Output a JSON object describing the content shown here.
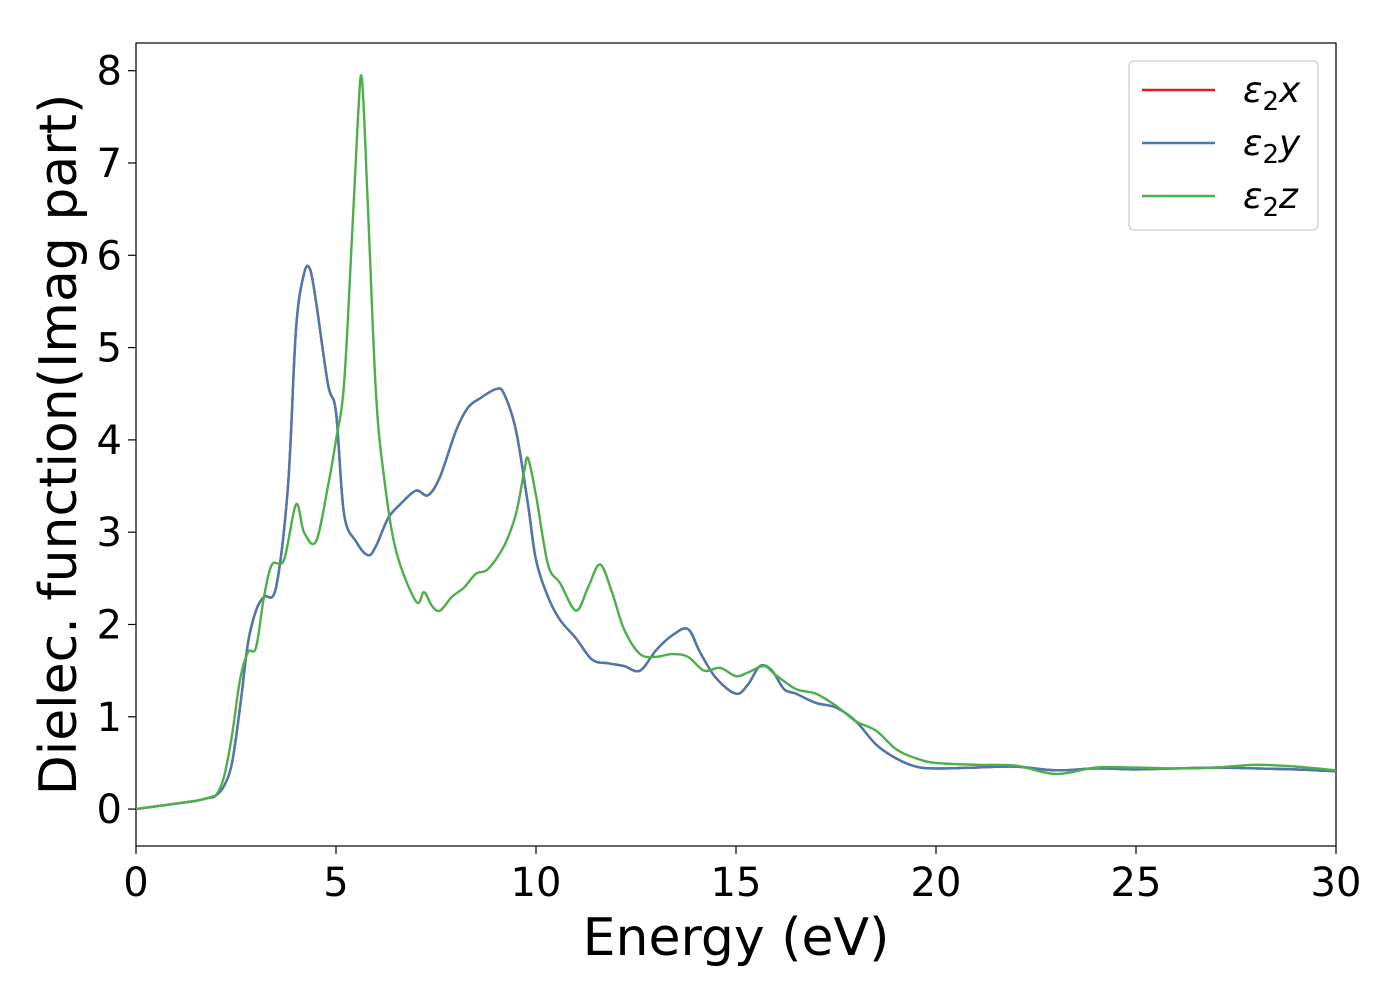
{
  "chart_data": {
    "type": "line",
    "title": "",
    "xlabel": "Energy (eV)",
    "ylabel": "Dielec. function(Imag part)",
    "xlim": [
      0,
      30
    ],
    "ylim": [
      -0.4,
      8.3
    ],
    "xticks": [
      0,
      5,
      10,
      15,
      20,
      25,
      30
    ],
    "yticks": [
      0,
      1,
      2,
      3,
      4,
      5,
      6,
      7,
      8
    ],
    "grid": false,
    "legend_position": "top-right",
    "series": [
      {
        "name": "ε2x",
        "legend_base": "ε",
        "legend_sub": "2",
        "legend_suffix": "x",
        "color": "#e41a1c",
        "x": [
          0,
          0.5,
          1,
          1.5,
          1.8,
          2,
          2.2,
          2.4,
          2.6,
          2.8,
          3,
          3.2,
          3.5,
          3.8,
          4,
          4.2,
          4.35,
          4.5,
          4.8,
          5,
          5.2,
          5.5,
          5.8,
          6,
          6.3,
          6.6,
          7,
          7.3,
          7.6,
          8,
          8.3,
          8.6,
          9,
          9.2,
          9.5,
          9.8,
          10,
          10.3,
          10.6,
          11,
          11.4,
          11.8,
          12.2,
          12.6,
          13,
          13.4,
          13.8,
          14.1,
          14.5,
          15,
          15.3,
          15.6,
          15.9,
          16.2,
          16.5,
          17,
          17.5,
          18,
          18.5,
          19,
          19.5,
          20,
          21,
          22,
          23,
          24,
          25,
          26,
          27,
          28,
          29,
          30
        ],
        "values": [
          0,
          0.03,
          0.06,
          0.09,
          0.12,
          0.15,
          0.25,
          0.5,
          1.1,
          1.8,
          2.15,
          2.3,
          2.4,
          3.5,
          5.2,
          5.8,
          5.85,
          5.5,
          4.6,
          4.3,
          3.2,
          2.9,
          2.75,
          2.85,
          3.15,
          3.3,
          3.45,
          3.4,
          3.6,
          4.1,
          4.35,
          4.45,
          4.55,
          4.5,
          4.1,
          3.3,
          2.7,
          2.3,
          2.05,
          1.85,
          1.62,
          1.58,
          1.55,
          1.5,
          1.72,
          1.88,
          1.95,
          1.7,
          1.42,
          1.25,
          1.35,
          1.55,
          1.5,
          1.3,
          1.25,
          1.15,
          1.1,
          0.95,
          0.7,
          0.55,
          0.46,
          0.44,
          0.45,
          0.46,
          0.42,
          0.44,
          0.43,
          0.44,
          0.45,
          0.44,
          0.43,
          0.41
        ]
      },
      {
        "name": "ε2y",
        "legend_base": "ε",
        "legend_sub": "2",
        "legend_suffix": "y",
        "color": "#4a78b0",
        "x": [
          0,
          0.5,
          1,
          1.5,
          1.8,
          2,
          2.2,
          2.4,
          2.6,
          2.8,
          3,
          3.2,
          3.5,
          3.8,
          4,
          4.2,
          4.35,
          4.5,
          4.8,
          5,
          5.2,
          5.5,
          5.8,
          6,
          6.3,
          6.6,
          7,
          7.3,
          7.6,
          8,
          8.3,
          8.6,
          9,
          9.2,
          9.5,
          9.8,
          10,
          10.3,
          10.6,
          11,
          11.4,
          11.8,
          12.2,
          12.6,
          13,
          13.4,
          13.8,
          14.1,
          14.5,
          15,
          15.3,
          15.6,
          15.9,
          16.2,
          16.5,
          17,
          17.5,
          18,
          18.5,
          19,
          19.5,
          20,
          21,
          22,
          23,
          24,
          25,
          26,
          27,
          28,
          29,
          30
        ],
        "values": [
          0,
          0.03,
          0.06,
          0.09,
          0.12,
          0.15,
          0.25,
          0.5,
          1.1,
          1.8,
          2.15,
          2.3,
          2.4,
          3.5,
          5.2,
          5.8,
          5.85,
          5.5,
          4.6,
          4.3,
          3.2,
          2.9,
          2.75,
          2.85,
          3.15,
          3.3,
          3.45,
          3.4,
          3.6,
          4.1,
          4.35,
          4.45,
          4.55,
          4.5,
          4.1,
          3.3,
          2.7,
          2.3,
          2.05,
          1.85,
          1.62,
          1.58,
          1.55,
          1.5,
          1.72,
          1.88,
          1.95,
          1.7,
          1.42,
          1.25,
          1.35,
          1.55,
          1.5,
          1.3,
          1.25,
          1.15,
          1.1,
          0.95,
          0.7,
          0.55,
          0.46,
          0.44,
          0.45,
          0.46,
          0.42,
          0.44,
          0.43,
          0.44,
          0.45,
          0.44,
          0.43,
          0.41
        ]
      },
      {
        "name": "ε2z",
        "legend_base": "ε",
        "legend_sub": "2",
        "legend_suffix": "z",
        "color": "#4daf4a",
        "x": [
          0,
          0.5,
          1,
          1.5,
          1.8,
          2,
          2.2,
          2.4,
          2.6,
          2.8,
          3,
          3.2,
          3.4,
          3.7,
          4,
          4.2,
          4.5,
          4.8,
          5,
          5.2,
          5.4,
          5.55,
          5.65,
          5.8,
          6,
          6.2,
          6.5,
          7,
          7.2,
          7.4,
          7.6,
          7.9,
          8.2,
          8.5,
          8.8,
          9.2,
          9.5,
          9.7,
          9.8,
          10,
          10.3,
          10.6,
          11,
          11.3,
          11.6,
          11.9,
          12.2,
          12.6,
          13,
          13.4,
          13.8,
          14.2,
          14.6,
          15,
          15.3,
          15.7,
          16,
          16.5,
          17,
          17.5,
          18,
          18.5,
          19,
          19.5,
          20,
          21,
          22,
          23,
          24,
          25,
          26,
          27,
          28,
          29,
          30
        ],
        "values": [
          0,
          0.03,
          0.06,
          0.09,
          0.12,
          0.15,
          0.35,
          0.8,
          1.4,
          1.7,
          1.75,
          2.3,
          2.65,
          2.7,
          3.3,
          3.0,
          2.9,
          3.5,
          4.0,
          4.6,
          6.2,
          7.5,
          7.9,
          6.5,
          4.5,
          3.6,
          2.8,
          2.25,
          2.35,
          2.2,
          2.15,
          2.3,
          2.4,
          2.55,
          2.6,
          2.85,
          3.2,
          3.65,
          3.8,
          3.4,
          2.65,
          2.45,
          2.15,
          2.4,
          2.65,
          2.35,
          1.95,
          1.68,
          1.65,
          1.68,
          1.65,
          1.5,
          1.53,
          1.44,
          1.48,
          1.55,
          1.45,
          1.3,
          1.25,
          1.12,
          0.95,
          0.85,
          0.65,
          0.55,
          0.5,
          0.48,
          0.47,
          0.38,
          0.45,
          0.45,
          0.44,
          0.45,
          0.48,
          0.46,
          0.42
        ]
      }
    ]
  }
}
